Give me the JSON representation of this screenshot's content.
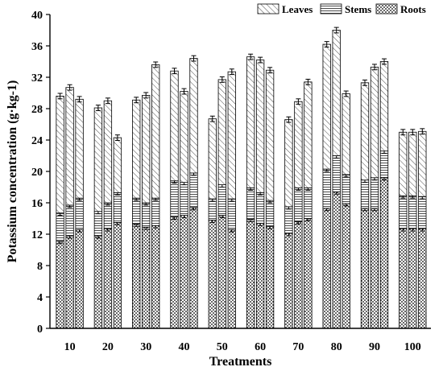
{
  "chart_data": {
    "type": "bar",
    "stacked": true,
    "title": "",
    "xlabel": "Treatments",
    "ylabel": "Potassium concentration (g·kg-1)",
    "ylim": [
      0,
      40
    ],
    "yticks": [
      0,
      4,
      8,
      12,
      16,
      20,
      24,
      28,
      32,
      36,
      40
    ],
    "categories": [
      "10",
      "20",
      "30",
      "40",
      "50",
      "60",
      "70",
      "80",
      "90",
      "100"
    ],
    "bars_per_category": 3,
    "legend_placement": "top-right",
    "grid": false,
    "series": [
      {
        "name": "Roots",
        "pattern": "dots",
        "values": [
          [
            11.1,
            11.8,
            12.6
          ],
          [
            11.8,
            12.7,
            13.5
          ],
          [
            13.3,
            12.9,
            13.1
          ],
          [
            14.2,
            14.4,
            15.4
          ],
          [
            13.8,
            14.4,
            12.6
          ],
          [
            13.9,
            13.4,
            13.0
          ],
          [
            12.1,
            13.6,
            14.0
          ],
          [
            15.3,
            17.4,
            15.9
          ],
          [
            15.3,
            15.3,
            19.2
          ],
          [
            12.7,
            12.7,
            12.7
          ]
        ]
      },
      {
        "name": "Stems",
        "pattern": "horizontal-lines",
        "values": [
          [
            3.6,
            3.9,
            4.0
          ],
          [
            3.1,
            3.3,
            3.8
          ],
          [
            3.3,
            3.1,
            3.5
          ],
          [
            4.6,
            4.2,
            4.4
          ],
          [
            2.7,
            3.9,
            3.9
          ],
          [
            4.0,
            3.9,
            3.3
          ],
          [
            3.4,
            4.3,
            3.9
          ],
          [
            5.0,
            4.6,
            3.7
          ],
          [
            3.6,
            3.9,
            3.4
          ],
          [
            4.2,
            4.2,
            4.1
          ]
        ]
      },
      {
        "name": "Leaves",
        "pattern": "diagonal-hatch",
        "values": [
          [
            14.9,
            15.0,
            12.6
          ],
          [
            13.2,
            13.0,
            7.0
          ],
          [
            12.5,
            13.7,
            17.0
          ],
          [
            14.0,
            11.6,
            14.6
          ],
          [
            10.2,
            13.4,
            16.2
          ],
          [
            16.7,
            16.9,
            16.6
          ],
          [
            11.1,
            11.0,
            13.5
          ],
          [
            15.9,
            16.0,
            10.3
          ],
          [
            12.4,
            14.1,
            11.4
          ],
          [
            8.1,
            8.1,
            8.3
          ]
        ]
      }
    ],
    "error_bars": {
      "roots": 0.3,
      "stems": 0.3,
      "leaves": 0.35
    }
  }
}
